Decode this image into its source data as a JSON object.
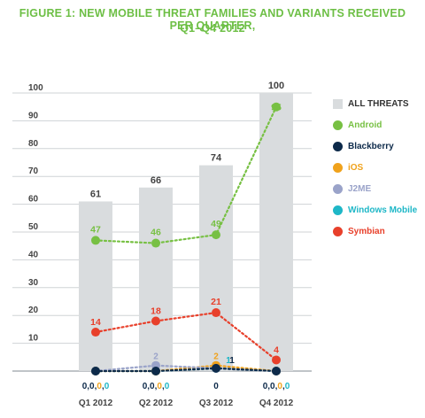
{
  "title": {
    "line1": "FIGURE 1: NEW MOBILE THREAT FAMILIES AND VARIANTS RECEIVED PER QUARTER,",
    "line2": "Q1–Q4 2012",
    "color": "#6dbf45"
  },
  "colors": {
    "bars": "#d9dcde",
    "axis_text": "#444444",
    "Android": "#77c043",
    "Blackberry": "#0d2a4a",
    "iOS": "#f0a21c",
    "J2ME": "#9aa3c9",
    "Windows Mobile": "#1eb7c7",
    "Symbian": "#e8402b"
  },
  "legend": [
    {
      "label": "ALL THREATS",
      "shape": "square"
    },
    {
      "label": "Android",
      "shape": "circle"
    },
    {
      "label": "Blackberry",
      "shape": "circle"
    },
    {
      "label": "iOS",
      "shape": "circle"
    },
    {
      "label": "J2ME",
      "shape": "circle"
    },
    {
      "label": "Windows Mobile",
      "shape": "circle"
    },
    {
      "label": "Symbian",
      "shape": "circle"
    }
  ],
  "chart_data": {
    "type": "bar",
    "categories": [
      "Q1 2012",
      "Q2 2012",
      "Q3 2012",
      "Q4 2012"
    ],
    "ylim": [
      0,
      100
    ],
    "yticks": [
      10,
      20,
      30,
      40,
      50,
      60,
      70,
      80,
      90,
      100
    ],
    "bars": {
      "name": "ALL THREATS",
      "values": [
        61,
        66,
        74,
        100
      ]
    },
    "lines": [
      {
        "name": "Android",
        "values": [
          47,
          46,
          49,
          95
        ],
        "labels": [
          "47",
          "46",
          "49",
          "95"
        ]
      },
      {
        "name": "Symbian",
        "values": [
          14,
          18,
          21,
          4
        ],
        "labels": [
          "14",
          "18",
          "21",
          "4"
        ]
      },
      {
        "name": "J2ME",
        "values": [
          0,
          2,
          1,
          0
        ],
        "labels": [
          "",
          "2",
          "",
          ""
        ]
      },
      {
        "name": "iOS",
        "values": [
          0,
          0,
          2,
          0
        ],
        "labels": [
          "",
          "",
          "2",
          ""
        ]
      },
      {
        "name": "Windows Mobile",
        "values": [
          0,
          0,
          1,
          0
        ],
        "labels": [
          "",
          "",
          "1",
          ""
        ]
      },
      {
        "name": "Blackberry",
        "values": [
          0,
          0,
          1,
          0
        ],
        "labels": [
          "",
          "",
          "1",
          ""
        ]
      }
    ],
    "bottom_labels": [
      [
        {
          "text": "0",
          "series": "Blackberry"
        },
        {
          "text": ",",
          "series": "Blackberry"
        },
        {
          "text": "0",
          "series": "Blackberry"
        },
        {
          "text": ",",
          "series": "Blackberry"
        },
        {
          "text": "0",
          "series": "iOS"
        },
        {
          "text": ",",
          "series": "Blackberry"
        },
        {
          "text": "0",
          "series": "Windows Mobile"
        }
      ],
      [
        {
          "text": "0",
          "series": "Blackberry"
        },
        {
          "text": ",",
          "series": "Blackberry"
        },
        {
          "text": "0",
          "series": "Blackberry"
        },
        {
          "text": ",",
          "series": "Blackberry"
        },
        {
          "text": "0",
          "series": "iOS"
        },
        {
          "text": ",",
          "series": "Blackberry"
        },
        {
          "text": "0",
          "series": "Windows Mobile"
        }
      ],
      [
        {
          "text": "0",
          "series": "Blackberry"
        }
      ],
      [
        {
          "text": "0",
          "series": "Blackberry"
        },
        {
          "text": ",",
          "series": "Blackberry"
        },
        {
          "text": "0",
          "series": "Blackberry"
        },
        {
          "text": ",",
          "series": "Blackberry"
        },
        {
          "text": "0",
          "series": "iOS"
        },
        {
          "text": ",",
          "series": "Blackberry"
        },
        {
          "text": "0",
          "series": "Windows Mobile"
        }
      ]
    ]
  }
}
